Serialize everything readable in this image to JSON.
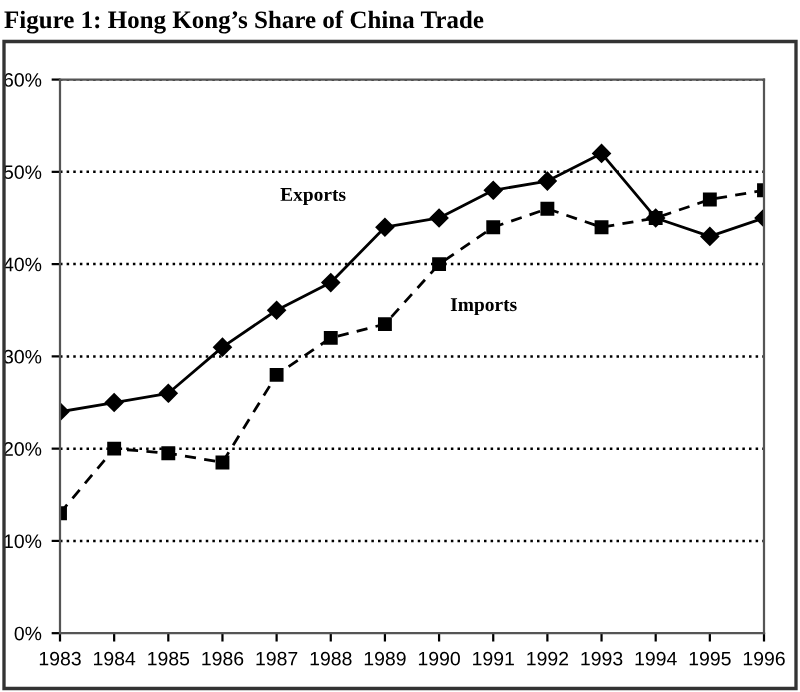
{
  "chart_data": {
    "type": "line",
    "title": "Figure 1: Hong Kong’s Share of China Trade",
    "categories": [
      "1983",
      "1984",
      "1985",
      "1986",
      "1987",
      "1988",
      "1989",
      "1990",
      "1991",
      "1992",
      "1993",
      "1994",
      "1995",
      "1996"
    ],
    "series": [
      {
        "name": "Exports",
        "color": "#000000",
        "marker": "diamond",
        "line_style": "solid",
        "values": [
          24,
          25,
          26,
          31,
          35,
          38,
          44,
          45,
          48,
          49,
          52,
          45,
          43,
          45
        ]
      },
      {
        "name": "Imports",
        "color": "#000000",
        "marker": "square",
        "line_style": "dashed",
        "values": [
          13,
          20,
          19.5,
          18.5,
          28,
          32,
          33.5,
          40,
          44,
          46,
          44,
          45,
          47,
          48
        ]
      }
    ],
    "ylim": [
      0,
      60
    ],
    "yticks": [
      {
        "value": 0,
        "label": "0%"
      },
      {
        "value": 10,
        "label": "10%"
      },
      {
        "value": 20,
        "label": "20%"
      },
      {
        "value": 30,
        "label": "30%"
      },
      {
        "value": 40,
        "label": "40%"
      },
      {
        "value": 50,
        "label": "50%"
      },
      {
        "value": 60,
        "label": "60%"
      }
    ],
    "grid": "y",
    "legend": false
  }
}
